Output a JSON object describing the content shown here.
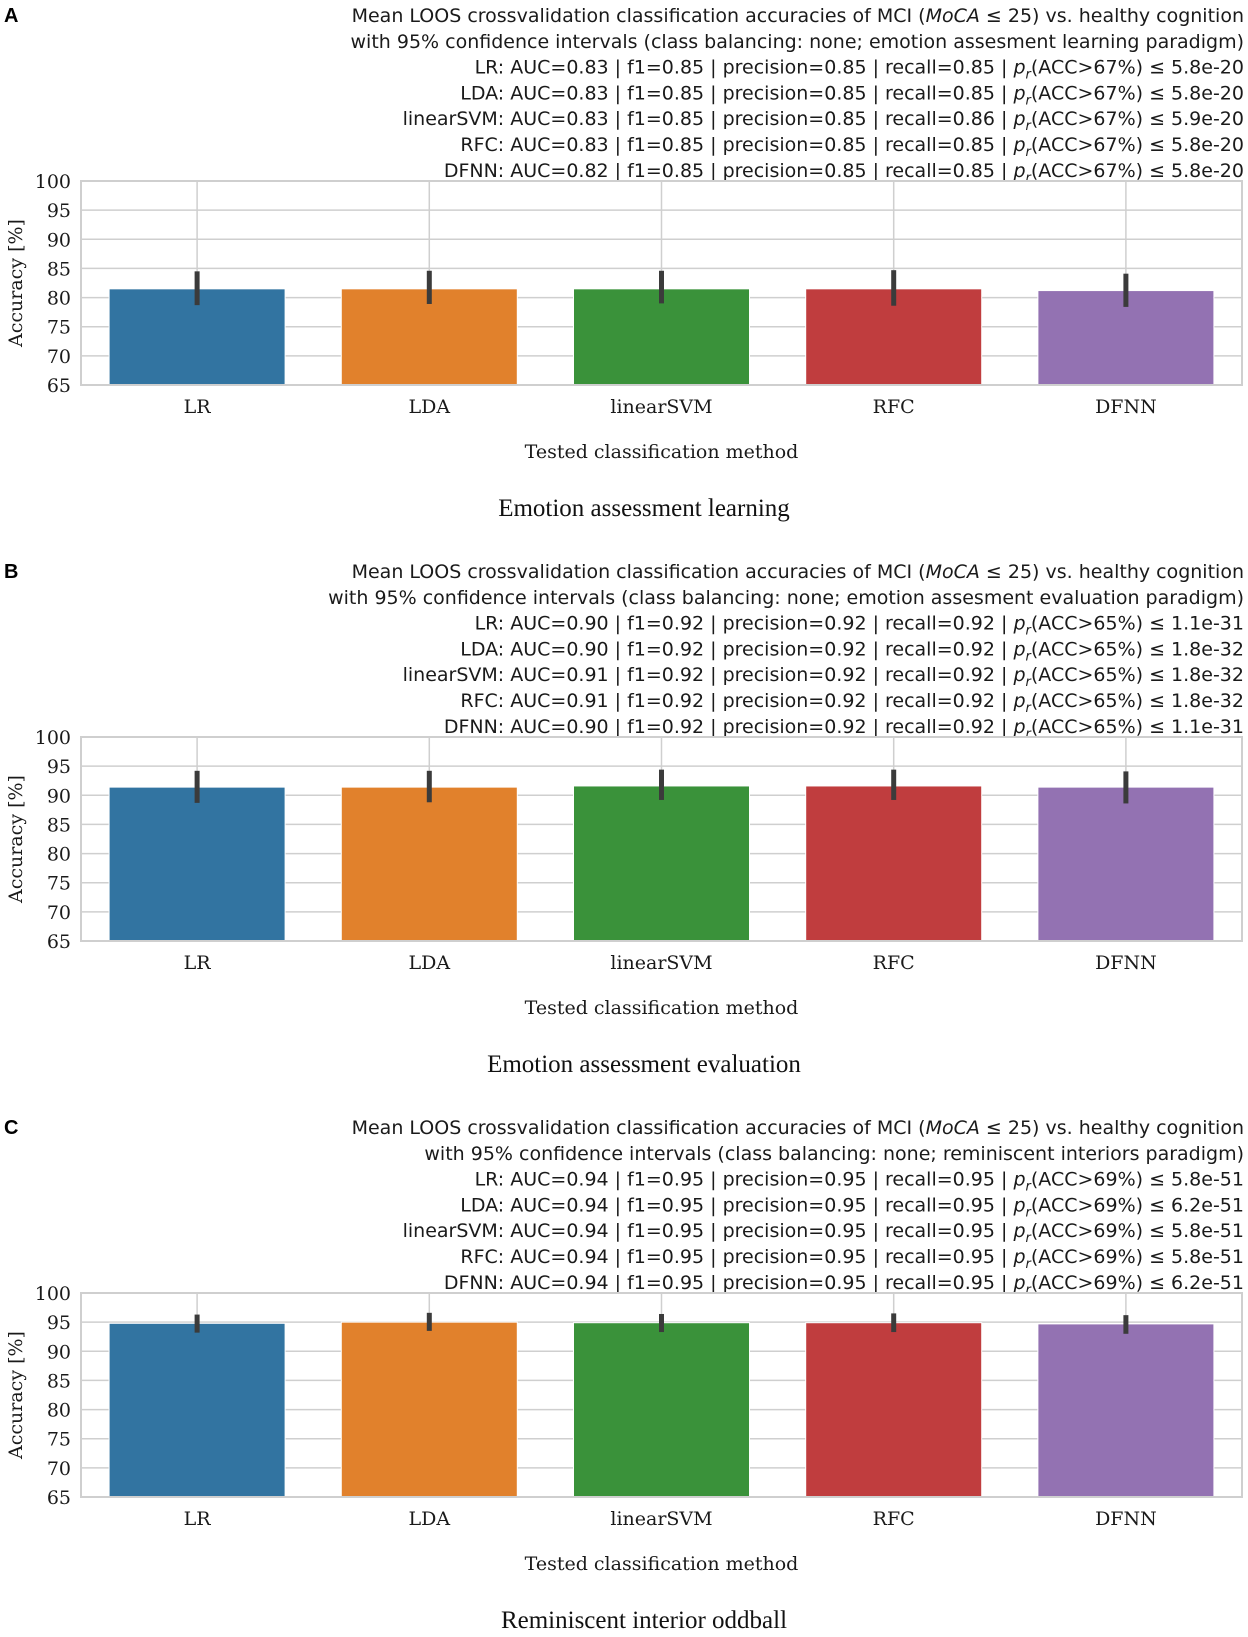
{
  "chart_data": [
    {
      "type": "bar",
      "panel": "A",
      "caption": "Emotion assessment learning",
      "title_lines": [
        {
          "pre": "Mean LOOS crossvalidation classification accuracies of MCI (",
          "italic": "MoCA",
          "post": " ≤ 25) vs. healthy cognition"
        },
        {
          "text": "with 95% confidence intervals (class balancing: none; emotion assesment learning paradigm)"
        }
      ],
      "metric_lines": [
        {
          "prefix": "LR: AUC=0.83 | f1=0.85 | precision=0.85 | recall=0.85 | ",
          "p": "p",
          "sub": "r",
          "suffix": "(ACC>67%) ≤ 5.8e-20"
        },
        {
          "prefix": "LDA: AUC=0.83 | f1=0.85 | precision=0.85 | recall=0.85 | ",
          "p": "p",
          "sub": "r",
          "suffix": "(ACC>67%) ≤ 5.8e-20"
        },
        {
          "prefix": "linearSVM: AUC=0.83 | f1=0.85 | precision=0.85 | recall=0.86 | ",
          "p": "p",
          "sub": "r",
          "suffix": "(ACC>67%) ≤ 5.9e-20"
        },
        {
          "prefix": "RFC: AUC=0.83 | f1=0.85 | precision=0.85 | recall=0.85 | ",
          "p": "p",
          "sub": "r",
          "suffix": "(ACC>67%) ≤ 5.8e-20"
        },
        {
          "prefix": "DFNN: AUC=0.82 | f1=0.85 | precision=0.85 | recall=0.85 | ",
          "p": "p",
          "sub": "r",
          "suffix": "(ACC>67%) ≤ 5.8e-20"
        }
      ],
      "xlabel": "Tested classification method",
      "ylabel": "Accuracy [%]",
      "ylim": [
        65,
        100
      ],
      "yticks": [
        65,
        70,
        75,
        80,
        85,
        90,
        95,
        100
      ],
      "categories": [
        "LR",
        "LDA",
        "linearSVM",
        "RFC",
        "DFNN"
      ],
      "values": [
        81.5,
        81.5,
        81.5,
        81.5,
        81.2
      ],
      "ci_low": [
        78.7,
        78.9,
        79.0,
        78.6,
        78.4
      ],
      "ci_high": [
        84.5,
        84.6,
        84.6,
        84.7,
        84.1
      ],
      "colors": [
        "#3274a1",
        "#e1812c",
        "#3a923a",
        "#c03d3e",
        "#9372b2"
      ]
    },
    {
      "type": "bar",
      "panel": "B",
      "caption": "Emotion assessment evaluation",
      "title_lines": [
        {
          "pre": "Mean LOOS crossvalidation classification accuracies of MCI (",
          "italic": "MoCA",
          "post": " ≤ 25) vs. healthy cognition"
        },
        {
          "text": "with 95% confidence intervals (class balancing: none; emotion assesment evaluation paradigm)"
        }
      ],
      "metric_lines": [
        {
          "prefix": "LR: AUC=0.90 | f1=0.92 | precision=0.92 | recall=0.92 | ",
          "p": "p",
          "sub": "r",
          "suffix": "(ACC>65%) ≤ 1.1e-31"
        },
        {
          "prefix": "LDA: AUC=0.90 | f1=0.92 | precision=0.92 | recall=0.92 | ",
          "p": "p",
          "sub": "r",
          "suffix": "(ACC>65%) ≤ 1.8e-32"
        },
        {
          "prefix": "linearSVM: AUC=0.91 | f1=0.92 | precision=0.92 | recall=0.92 | ",
          "p": "p",
          "sub": "r",
          "suffix": "(ACC>65%) ≤ 1.8e-32"
        },
        {
          "prefix": "RFC: AUC=0.91 | f1=0.92 | precision=0.92 | recall=0.92 | ",
          "p": "p",
          "sub": "r",
          "suffix": "(ACC>65%) ≤ 1.8e-32"
        },
        {
          "prefix": "DFNN: AUC=0.90 | f1=0.92 | precision=0.92 | recall=0.92 | ",
          "p": "p",
          "sub": "r",
          "suffix": "(ACC>65%) ≤ 1.1e-31"
        }
      ],
      "xlabel": "Tested classification method",
      "ylabel": "Accuracy [%]",
      "ylim": [
        65,
        100
      ],
      "yticks": [
        65,
        70,
        75,
        80,
        85,
        90,
        95,
        100
      ],
      "categories": [
        "LR",
        "LDA",
        "linearSVM",
        "RFC",
        "DFNN"
      ],
      "values": [
        91.4,
        91.4,
        91.6,
        91.6,
        91.4
      ],
      "ci_low": [
        88.7,
        88.8,
        89.2,
        89.2,
        88.6
      ],
      "ci_high": [
        94.2,
        94.2,
        94.4,
        94.4,
        94.1
      ],
      "colors": [
        "#3274a1",
        "#e1812c",
        "#3a923a",
        "#c03d3e",
        "#9372b2"
      ]
    },
    {
      "type": "bar",
      "panel": "C",
      "caption": "Reminiscent interior oddball",
      "title_lines": [
        {
          "pre": "Mean LOOS crossvalidation classification accuracies of MCI (",
          "italic": "MoCA",
          "post": " ≤ 25) vs. healthy cognition"
        },
        {
          "text": "with 95% confidence intervals (class balancing: none; reminiscent interiors paradigm)"
        }
      ],
      "metric_lines": [
        {
          "prefix": "LR: AUC=0.94 | f1=0.95 | precision=0.95 | recall=0.95 | ",
          "p": "p",
          "sub": "r",
          "suffix": "(ACC>69%) ≤ 5.8e-51"
        },
        {
          "prefix": "LDA: AUC=0.94 | f1=0.95 | precision=0.95 | recall=0.95 | ",
          "p": "p",
          "sub": "r",
          "suffix": "(ACC>69%) ≤ 6.2e-51"
        },
        {
          "prefix": "linearSVM: AUC=0.94 | f1=0.95 | precision=0.95 | recall=0.95 | ",
          "p": "p",
          "sub": "r",
          "suffix": "(ACC>69%) ≤ 5.8e-51"
        },
        {
          "prefix": "RFC: AUC=0.94 | f1=0.95 | precision=0.95 | recall=0.95 | ",
          "p": "p",
          "sub": "r",
          "suffix": "(ACC>69%) ≤ 5.8e-51"
        },
        {
          "prefix": "DFNN: AUC=0.94 | f1=0.95 | precision=0.95 | recall=0.95 | ",
          "p": "p",
          "sub": "r",
          "suffix": "(ACC>69%) ≤ 6.2e-51"
        }
      ],
      "xlabel": "Tested classification method",
      "ylabel": "Accuracy [%]",
      "ylim": [
        65,
        100
      ],
      "yticks": [
        65,
        70,
        75,
        80,
        85,
        90,
        95,
        100
      ],
      "categories": [
        "LR",
        "LDA",
        "linearSVM",
        "RFC",
        "DFNN"
      ],
      "values": [
        94.8,
        95.0,
        94.9,
        94.9,
        94.7
      ],
      "ci_low": [
        93.2,
        93.5,
        93.3,
        93.3,
        93.0
      ],
      "ci_high": [
        96.3,
        96.6,
        96.4,
        96.5,
        96.2
      ],
      "colors": [
        "#3274a1",
        "#e1812c",
        "#3a923a",
        "#c03d3e",
        "#9372b2"
      ]
    }
  ]
}
